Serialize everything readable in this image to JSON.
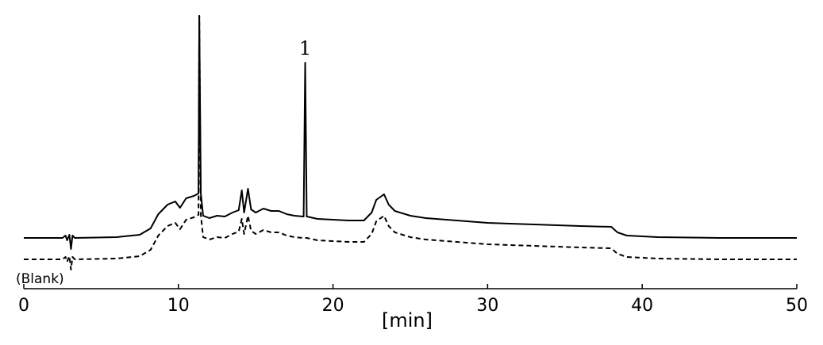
{
  "chart_data": {
    "type": "line",
    "xlabel": "[min]",
    "x": [
      0,
      2.5,
      2.7,
      2.8,
      2.95,
      3.05,
      3.15,
      3.3,
      6,
      7.5,
      8.2,
      8.7,
      9.3,
      9.8,
      10.1,
      10.5,
      11,
      11.3,
      11.35,
      11.45,
      11.6,
      12,
      12.5,
      13,
      13.5,
      13.9,
      14.1,
      14.25,
      14.5,
      14.7,
      15,
      15.5,
      16,
      16.5,
      17,
      17.5,
      18.1,
      18.2,
      18.3,
      19,
      20,
      21,
      22,
      22.5,
      22.8,
      23.3,
      23.6,
      24,
      25,
      26,
      28,
      30,
      33,
      36,
      38,
      38.4,
      39,
      41,
      45,
      50
    ],
    "series": [
      {
        "color": "#000000",
        "dashed": false,
        "values": [
          64,
          64,
          67,
          61,
          68,
          50,
          67,
          64,
          65,
          68,
          76,
          94,
          106,
          110,
          102,
          114,
          117,
          120,
          344,
          120,
          92,
          89,
          92,
          91,
          96,
          99,
          124,
          96,
          126,
          100,
          96,
          101,
          98,
          98,
          94,
          92,
          91,
          285,
          91,
          88,
          87,
          86,
          86,
          96,
          112,
          119,
          106,
          98,
          92,
          89,
          86,
          83,
          81,
          79,
          78,
          71,
          67,
          65,
          64,
          64
        ]
      },
      {
        "name": "(Blank)",
        "color": "#000000",
        "dashed": true,
        "values": [
          37,
          37,
          40,
          34,
          41,
          24,
          40,
          37,
          38,
          41,
          49,
          67,
          79,
          83,
          75,
          87,
          90,
          93,
          344,
          93,
          65,
          62,
          65,
          64,
          69,
          72,
          88,
          69,
          92,
          73,
          69,
          74,
          71,
          71,
          67,
          65,
          64,
          64,
          64,
          61,
          60,
          59,
          59,
          69,
          85,
          92,
          79,
          71,
          65,
          62,
          59,
          56,
          54,
          52,
          51,
          44,
          40,
          38,
          37,
          37
        ]
      }
    ],
    "annotations": [
      {
        "text": "1",
        "x": 18.2,
        "series": 0
      }
    ],
    "xlim": [
      0,
      50
    ],
    "xticks": [
      0,
      10,
      20,
      30,
      40,
      50
    ],
    "ylim": [
      0,
      345
    ]
  }
}
